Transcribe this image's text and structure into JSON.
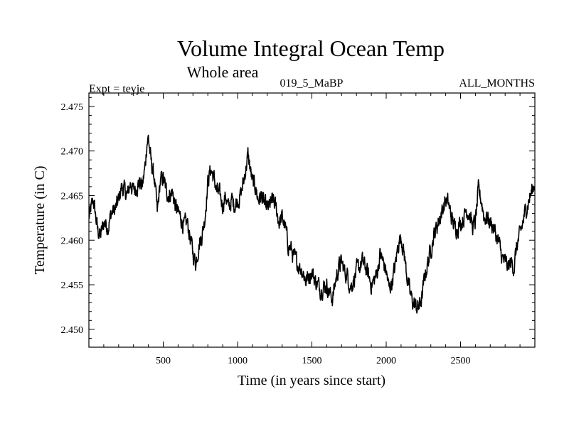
{
  "chart_data": {
    "type": "line",
    "title": "Volume Integral Ocean Temp",
    "subtitle": "Whole area",
    "left_label": "Expt = teyje",
    "center_label": "019_5_MaBP",
    "right_label": "ALL_MONTHS",
    "xlabel": "Time (in years since start)",
    "ylabel": "Temperature (in C)",
    "xlim": [
      0,
      3000
    ],
    "ylim": [
      2.448,
      2.4765
    ],
    "x_ticks": [
      500,
      1000,
      1500,
      2000,
      2500
    ],
    "x_tick_labels": [
      "500",
      "1000",
      "1500",
      "2000",
      "2500"
    ],
    "y_ticks": [
      2.45,
      2.455,
      2.46,
      2.465,
      2.47,
      2.475
    ],
    "y_tick_labels": [
      "2.450",
      "2.455",
      "2.460",
      "2.465",
      "2.470",
      "2.475"
    ],
    "grid": false,
    "line_color": "#000000",
    "series": [
      {
        "name": "Volume Integral Ocean Temp",
        "x": [
          0,
          30,
          60,
          80,
          100,
          130,
          150,
          180,
          200,
          220,
          240,
          260,
          280,
          300,
          320,
          340,
          360,
          380,
          390,
          400,
          420,
          440,
          460,
          480,
          500,
          520,
          540,
          560,
          580,
          600,
          620,
          640,
          660,
          680,
          700,
          720,
          740,
          760,
          780,
          800,
          820,
          840,
          860,
          880,
          900,
          920,
          940,
          960,
          980,
          1000,
          1020,
          1040,
          1060,
          1070,
          1080,
          1100,
          1120,
          1140,
          1160,
          1180,
          1200,
          1220,
          1240,
          1260,
          1280,
          1300,
          1320,
          1340,
          1360,
          1380,
          1400,
          1420,
          1440,
          1460,
          1480,
          1500,
          1520,
          1540,
          1560,
          1580,
          1600,
          1620,
          1640,
          1660,
          1680,
          1700,
          1720,
          1740,
          1760,
          1780,
          1800,
          1820,
          1840,
          1860,
          1880,
          1900,
          1920,
          1940,
          1960,
          1980,
          2000,
          2020,
          2040,
          2060,
          2080,
          2100,
          2120,
          2140,
          2160,
          2180,
          2200,
          2220,
          2240,
          2260,
          2280,
          2300,
          2320,
          2340,
          2360,
          2380,
          2400,
          2420,
          2440,
          2460,
          2480,
          2500,
          2520,
          2540,
          2560,
          2580,
          2600,
          2620,
          2640,
          2660,
          2680,
          2700,
          2720,
          2740,
          2760,
          2780,
          2800,
          2820,
          2840,
          2860,
          2880,
          2900,
          2920,
          2940,
          2960,
          2980,
          3000
        ],
        "y": [
          2.4625,
          2.4645,
          2.461,
          2.4605,
          2.462,
          2.4615,
          2.463,
          2.4635,
          2.4645,
          2.466,
          2.4655,
          2.465,
          2.4665,
          2.4655,
          2.466,
          2.4665,
          2.466,
          2.4685,
          2.471,
          2.4715,
          2.4685,
          2.467,
          2.463,
          2.4665,
          2.467,
          2.4655,
          2.465,
          2.4655,
          2.464,
          2.463,
          2.4625,
          2.4615,
          2.462,
          2.4605,
          2.4585,
          2.4575,
          2.4595,
          2.4605,
          2.4625,
          2.4665,
          2.468,
          2.467,
          2.4655,
          2.465,
          2.464,
          2.465,
          2.4635,
          2.4645,
          2.464,
          2.4645,
          2.465,
          2.4665,
          2.4685,
          2.4695,
          2.4685,
          2.4665,
          2.466,
          2.4645,
          2.465,
          2.464,
          2.4635,
          2.464,
          2.4645,
          2.4635,
          2.462,
          2.4625,
          2.4615,
          2.4595,
          2.459,
          2.458,
          2.4575,
          2.457,
          2.4565,
          2.4555,
          2.456,
          2.4565,
          2.4555,
          2.455,
          2.4545,
          2.4548,
          2.455,
          2.454,
          2.4535,
          2.4555,
          2.457,
          2.4575,
          2.4565,
          2.456,
          2.4548,
          2.4555,
          2.4565,
          2.457,
          2.4575,
          2.457,
          2.456,
          2.455,
          2.4555,
          2.4565,
          2.4585,
          2.4575,
          2.4565,
          2.4545,
          2.4555,
          2.457,
          2.4595,
          2.4605,
          2.4585,
          2.456,
          2.454,
          2.453,
          2.4525,
          2.4525,
          2.4535,
          2.456,
          2.4575,
          2.459,
          2.4605,
          2.4615,
          2.4625,
          2.4635,
          2.4645,
          2.464,
          2.4625,
          2.4615,
          2.4615,
          2.462,
          2.4625,
          2.4635,
          2.463,
          2.4615,
          2.462,
          2.4655,
          2.4645,
          2.4625,
          2.4625,
          2.462,
          2.4615,
          2.4605,
          2.4595,
          2.458,
          2.4575,
          2.457,
          2.4575,
          2.457,
          2.4595,
          2.4605,
          2.462,
          2.4635,
          2.4645,
          2.4655,
          2.4665
        ]
      }
    ]
  }
}
